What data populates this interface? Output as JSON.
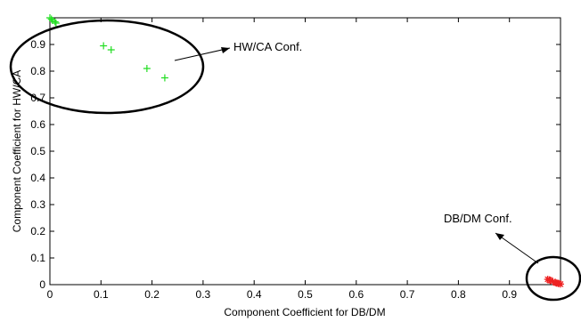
{
  "chart_data": {
    "type": "scatter",
    "xlabel": "Component Coefficient for DB/DM",
    "ylabel": "Component Coefficient for HW/CA",
    "xlim": [
      0,
      1.0
    ],
    "ylim": [
      0,
      1.0
    ],
    "xticks": [
      0,
      0.1,
      0.2,
      0.3,
      0.4,
      0.5,
      0.6,
      0.7,
      0.8,
      0.9
    ],
    "yticks": [
      0,
      0.1,
      0.2,
      0.3,
      0.4,
      0.5,
      0.6,
      0.7,
      0.8,
      0.9
    ],
    "grid": false,
    "series": [
      {
        "marker": "+",
        "color": "#22dd22",
        "points": [
          [
            0.0,
            1.0
          ],
          [
            0.005,
            0.99
          ],
          [
            0.01,
            0.985
          ],
          [
            0.012,
            0.98
          ],
          [
            0.003,
            0.995
          ],
          [
            0.105,
            0.895
          ],
          [
            0.12,
            0.88
          ],
          [
            0.19,
            0.81
          ],
          [
            0.225,
            0.775
          ]
        ]
      },
      {
        "marker": "*",
        "color": "#ee2222",
        "points": [
          [
            0.975,
            0.02
          ],
          [
            0.98,
            0.015
          ],
          [
            0.985,
            0.012
          ],
          [
            0.99,
            0.008
          ],
          [
            0.995,
            0.005
          ],
          [
            1.0,
            0.002
          ],
          [
            0.978,
            0.018
          ],
          [
            0.992,
            0.006
          ],
          [
            0.997,
            0.004
          ]
        ]
      }
    ],
    "annotations": [
      {
        "text": "HW/CA Conf."
      },
      {
        "text": "DB/DM Conf."
      }
    ]
  }
}
